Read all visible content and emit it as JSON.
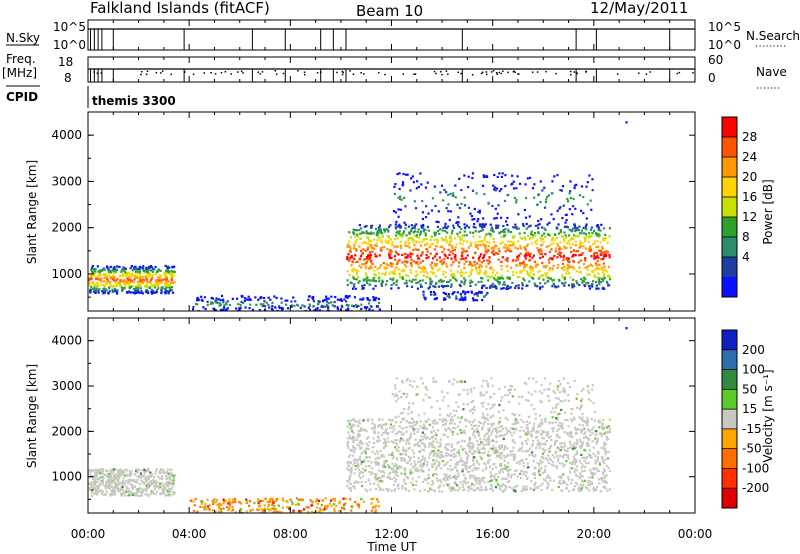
{
  "header": {
    "station": "Falkland Islands (fitACF)",
    "beam": "Beam 10",
    "date": "12/May/2011"
  },
  "strips": {
    "nsky_label": "N.Sky",
    "nsearch_label": "N.Search",
    "noise_ticks": [
      "10^5",
      "10^0"
    ],
    "freq_label": "Freq.",
    "freq_unit": "[MHz]",
    "freq_ticks": [
      "18",
      "8"
    ],
    "nave_label": "Nave",
    "nave_ticks": [
      "60",
      "0"
    ],
    "cpid_label": "CPID",
    "cpid_value": "themis 3300"
  },
  "chart_data": [
    {
      "type": "heatmap",
      "name": "power",
      "ylabel": "Slant Range [km]",
      "ylim": [
        200,
        4500
      ],
      "yticks": [
        1000,
        2000,
        3000,
        4000
      ],
      "xlim": [
        0,
        24
      ],
      "colorbar": {
        "label": "Power [dB]",
        "ticks": [
          "28",
          "24",
          "20",
          "16",
          "12",
          "8",
          "4"
        ],
        "colors": [
          "#ff0000",
          "#ff5500",
          "#ff9a00",
          "#ffd400",
          "#c8e000",
          "#2ea02e",
          "#2e8b6e",
          "#1c3fa0",
          "#0a10ff"
        ]
      },
      "echo_regions": [
        {
          "t0": 0.0,
          "t1": 3.4,
          "r0": 600,
          "r1": 1200,
          "peak_db": 24
        },
        {
          "t0": 4.0,
          "t1": 11.5,
          "r0": 200,
          "r1": 550,
          "peak_db": 8
        },
        {
          "t0": 10.2,
          "t1": 20.6,
          "r0": 700,
          "r1": 2100,
          "peak_db": 28
        },
        {
          "t0": 12.0,
          "t1": 20.0,
          "r0": 2100,
          "r1": 3200,
          "peak_db": 8
        },
        {
          "t0": 13.2,
          "t1": 15.8,
          "r0": 450,
          "r1": 650,
          "peak_db": 8
        }
      ]
    },
    {
      "type": "heatmap",
      "name": "velocity",
      "ylabel": "Slant Range [km]",
      "ylim": [
        200,
        4500
      ],
      "yticks": [
        1000,
        2000,
        3000,
        4000
      ],
      "xlim": [
        0,
        24
      ],
      "xticks": [
        "00:00",
        "04:00",
        "08:00",
        "12:00",
        "16:00",
        "20:00",
        "00:00"
      ],
      "xlabel": "Time UT",
      "colorbar": {
        "label": "Velocity [m s⁻¹]",
        "ticks": [
          "200",
          "100",
          "50",
          "15",
          "-15",
          "-50",
          "-100",
          "-200"
        ],
        "colors": [
          "#1020c0",
          "#2f6fb0",
          "#2e8b3e",
          "#5ccc2a",
          "#c8c8c0",
          "#ffa500",
          "#ff7000",
          "#ff3000",
          "#e00000"
        ]
      },
      "echo_regions": [
        {
          "t0": 0.0,
          "t1": 3.4,
          "r0": 600,
          "r1": 1200,
          "dominant": "ground scatter"
        },
        {
          "t0": 4.0,
          "t1": 11.5,
          "r0": 200,
          "r1": 550,
          "dominant": "-50 to -100"
        },
        {
          "t0": 10.2,
          "t1": 20.6,
          "r0": 700,
          "r1": 2300,
          "dominant": "ground scatter"
        },
        {
          "t0": 12.0,
          "t1": 20.0,
          "r0": 2300,
          "r1": 3200,
          "dominant": "ground scatter"
        }
      ]
    }
  ]
}
